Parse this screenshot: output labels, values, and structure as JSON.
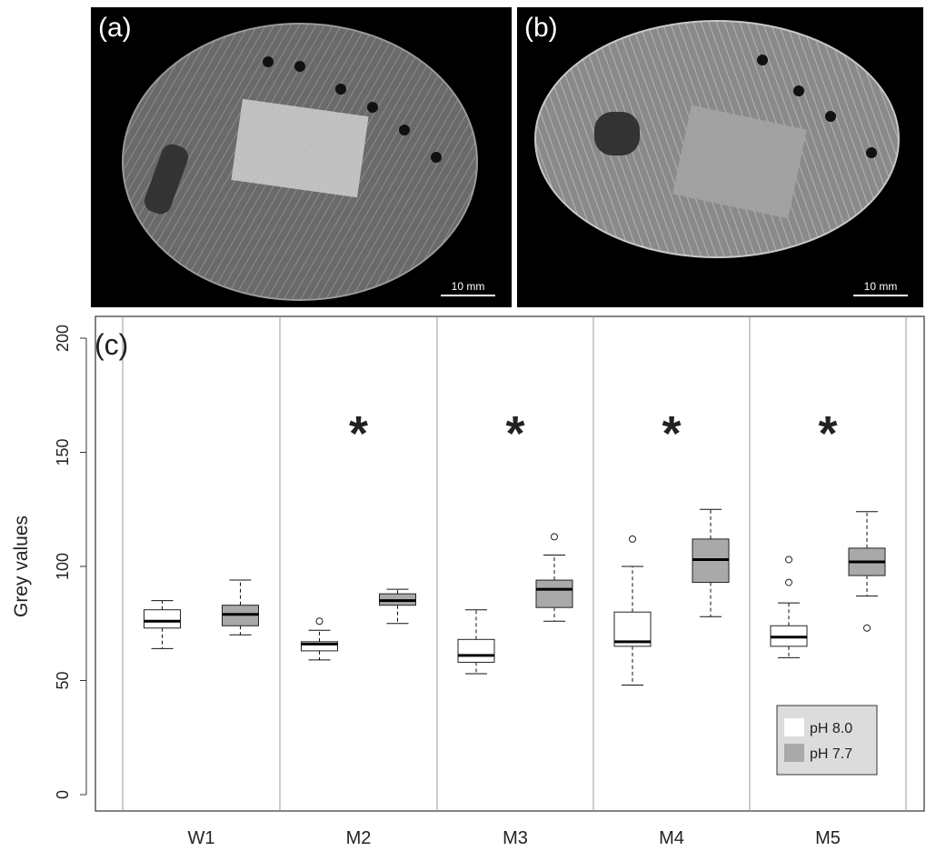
{
  "photos": [
    {
      "label": "(a)",
      "scale": "10 mm"
    },
    {
      "label": "(b)",
      "scale": "10 mm"
    }
  ],
  "chart_data": {
    "type": "box",
    "panel_label": "(c)",
    "ylabel": "Grey values",
    "xlabel": "",
    "ylim": [
      0,
      200
    ],
    "yticks": [
      0,
      50,
      100,
      150,
      200
    ],
    "categories": [
      "W1",
      "M2",
      "M3",
      "M4",
      "M5"
    ],
    "significance": [
      "",
      "*",
      "*",
      "*",
      "*"
    ],
    "grid": false,
    "legend_position": "bottom-right",
    "series": [
      {
        "name": "pH 8.0",
        "color": "#ffffff",
        "boxes": [
          {
            "min": 64,
            "q1": 73,
            "median": 76,
            "q3": 81,
            "max": 85,
            "outliers": []
          },
          {
            "min": 59,
            "q1": 63,
            "median": 66,
            "q3": 67,
            "max": 72,
            "outliers": [
              76
            ]
          },
          {
            "min": 53,
            "q1": 58,
            "median": 61,
            "q3": 68,
            "max": 81,
            "outliers": []
          },
          {
            "min": 48,
            "q1": 65,
            "median": 67,
            "q3": 80,
            "max": 100,
            "outliers": [
              112
            ]
          },
          {
            "min": 60,
            "q1": 65,
            "median": 69,
            "q3": 74,
            "max": 84,
            "outliers": [
              93,
              103
            ]
          }
        ]
      },
      {
        "name": "pH 7.7",
        "color": "#a9a9a9",
        "boxes": [
          {
            "min": 70,
            "q1": 74,
            "median": 79,
            "q3": 83,
            "max": 94,
            "outliers": []
          },
          {
            "min": 75,
            "q1": 83,
            "median": 85,
            "q3": 88,
            "max": 90,
            "outliers": []
          },
          {
            "min": 76,
            "q1": 82,
            "median": 90,
            "q3": 94,
            "max": 105,
            "outliers": [
              113
            ]
          },
          {
            "min": 78,
            "q1": 93,
            "median": 103,
            "q3": 112,
            "max": 125,
            "outliers": []
          },
          {
            "min": 87,
            "q1": 96,
            "median": 102,
            "q3": 108,
            "max": 124,
            "outliers": [
              73
            ]
          }
        ]
      }
    ]
  }
}
